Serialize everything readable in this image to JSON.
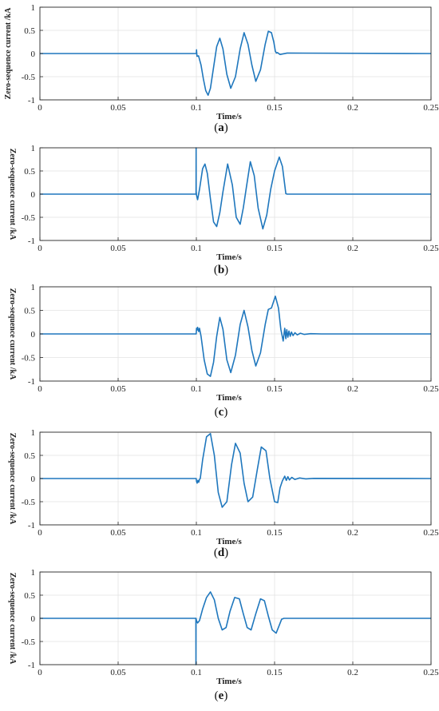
{
  "chart_data": [
    {
      "type": "line",
      "caption_letter": "a",
      "xlabel": "Time/s",
      "ylabel": "Zero-sequence current /kA",
      "xlim": [
        0,
        0.25
      ],
      "ylim": [
        -1,
        1
      ],
      "xticks": [
        0,
        0.05,
        0.1,
        0.15,
        0.2,
        0.25
      ],
      "xtick_labels": [
        "0",
        "0.05",
        "0.1",
        "0.15",
        "0.2",
        "0.25"
      ],
      "yticks": [
        -1,
        -0.5,
        0,
        0.5,
        1
      ],
      "ytick_labels": [
        "-1",
        "-0.5",
        "0",
        "0.5",
        "1"
      ],
      "grid": true,
      "series_color": "#1f77bd",
      "x": [
        0,
        0.1,
        0.1001,
        0.1004,
        0.1014,
        0.103,
        0.1045,
        0.106,
        0.1075,
        0.109,
        0.111,
        0.113,
        0.115,
        0.117,
        0.1195,
        0.122,
        0.125,
        0.128,
        0.1305,
        0.133,
        0.1355,
        0.138,
        0.141,
        0.144,
        0.146,
        0.148,
        0.1495,
        0.1505,
        0.1512,
        0.1518,
        0.1535,
        0.158,
        0.25
      ],
      "y": [
        0,
        0,
        0.08,
        -0.06,
        -0.05,
        -0.25,
        -0.55,
        -0.8,
        -0.9,
        -0.75,
        -0.3,
        0.15,
        0.33,
        0.1,
        -0.45,
        -0.75,
        -0.5,
        0.1,
        0.45,
        0.2,
        -0.25,
        -0.6,
        -0.35,
        0.2,
        0.48,
        0.45,
        0.25,
        0.05,
        0.01,
        0.02,
        -0.02,
        0.01,
        0
      ]
    },
    {
      "type": "line",
      "caption_letter": "b",
      "xlabel": "Time/s",
      "ylabel": "Zero-sequence current /kA",
      "xlim": [
        0,
        0.25
      ],
      "ylim": [
        -1,
        1
      ],
      "xticks": [
        0,
        0.05,
        0.1,
        0.15,
        0.2,
        0.25
      ],
      "xtick_labels": [
        "0",
        "0.05",
        "0.1",
        "0.15",
        "0.2",
        "0.25"
      ],
      "yticks": [
        -1,
        -0.5,
        0,
        0.5,
        1
      ],
      "ytick_labels": [
        "-1",
        "-0.5",
        "0",
        "0.5",
        "1"
      ],
      "grid": true,
      "series_color": "#1f77bd",
      "x": [
        0,
        0.0998,
        0.09985,
        0.0999,
        0.1001,
        0.1008,
        0.102,
        0.104,
        0.1055,
        0.107,
        0.109,
        0.111,
        0.113,
        0.115,
        0.117,
        0.12,
        0.123,
        0.1255,
        0.128,
        0.13,
        0.132,
        0.1345,
        0.137,
        0.1395,
        0.1425,
        0.145,
        0.1475,
        0.15,
        0.153,
        0.155,
        0.1565,
        0.1572,
        0.158,
        0.25
      ],
      "y": [
        0,
        0,
        1,
        0.05,
        -0.02,
        -0.12,
        0.1,
        0.55,
        0.65,
        0.45,
        -0.1,
        -0.6,
        -0.7,
        -0.4,
        0.05,
        0.65,
        0.2,
        -0.5,
        -0.65,
        -0.3,
        0.15,
        0.7,
        0.4,
        -0.3,
        -0.75,
        -0.45,
        0.1,
        0.5,
        0.8,
        0.6,
        0.2,
        0.01,
        0,
        0
      ]
    },
    {
      "type": "line",
      "caption_letter": "c",
      "xlabel": "Time/s",
      "ylabel": "Zero-sequence current /kA",
      "xlim": [
        0,
        0.25
      ],
      "ylim": [
        -1,
        1
      ],
      "xticks": [
        0,
        0.05,
        0.1,
        0.15,
        0.2,
        0.25
      ],
      "xtick_labels": [
        "0",
        "0.05",
        "0.1",
        "0.15",
        "0.2",
        "0.25"
      ],
      "yticks": [
        -1,
        -0.5,
        0,
        0.5,
        1
      ],
      "ytick_labels": [
        "-1",
        "-0.5",
        "0",
        "0.5",
        "1"
      ],
      "grid": true,
      "series_color": "#1f77bd",
      "x": [
        0,
        0.0999,
        0.1001,
        0.1004,
        0.1008,
        0.1015,
        0.102,
        0.103,
        0.105,
        0.107,
        0.109,
        0.111,
        0.113,
        0.115,
        0.117,
        0.1195,
        0.122,
        0.125,
        0.128,
        0.1305,
        0.133,
        0.1355,
        0.138,
        0.141,
        0.144,
        0.146,
        0.148,
        0.1505,
        0.1525,
        0.154,
        0.1555,
        0.1565,
        0.1572,
        0.1578,
        0.1585,
        0.1592,
        0.16,
        0.1608,
        0.1618,
        0.163,
        0.1645,
        0.1665,
        0.169,
        0.173,
        0.18,
        0.25
      ],
      "y": [
        0,
        0,
        0.12,
        0.08,
        0.14,
        0.05,
        0.12,
        -0.05,
        -0.55,
        -0.85,
        -0.9,
        -0.6,
        -0.05,
        0.35,
        0.1,
        -0.55,
        -0.82,
        -0.45,
        0.2,
        0.5,
        0.15,
        -0.35,
        -0.68,
        -0.4,
        0.2,
        0.52,
        0.55,
        0.8,
        0.55,
        0.1,
        -0.15,
        0.12,
        -0.1,
        0.09,
        -0.07,
        0.06,
        -0.05,
        0.04,
        -0.035,
        0.025,
        -0.02,
        0.015,
        -0.01,
        0.006,
        0,
        0
      ]
    },
    {
      "type": "line",
      "caption_letter": "d",
      "xlabel": "Time/s",
      "ylabel": "Zero-sequence current /kA",
      "xlim": [
        0,
        0.25
      ],
      "ylim": [
        -1,
        1
      ],
      "xticks": [
        0,
        0.05,
        0.1,
        0.15,
        0.2,
        0.25
      ],
      "xtick_labels": [
        "0",
        "0.05",
        "0.1",
        "0.15",
        "0.2",
        "0.25"
      ],
      "yticks": [
        -1,
        -0.5,
        0,
        0.5,
        1
      ],
      "ytick_labels": [
        "-1",
        "-0.5",
        "0",
        "0.5",
        "1"
      ],
      "grid": true,
      "series_color": "#1f77bd",
      "x": [
        0,
        0.0999,
        0.1001,
        0.1005,
        0.101,
        0.1015,
        0.102,
        0.1025,
        0.104,
        0.1065,
        0.109,
        0.1115,
        0.114,
        0.1165,
        0.1195,
        0.1225,
        0.125,
        0.128,
        0.1305,
        0.133,
        0.136,
        0.139,
        0.1415,
        0.1445,
        0.147,
        0.15,
        0.152,
        0.1535,
        0.155,
        0.1565,
        0.1575,
        0.1585,
        0.1595,
        0.161,
        0.163,
        0.166,
        0.17,
        0.175,
        0.25
      ],
      "y": [
        0,
        0,
        -0.06,
        -0.1,
        -0.04,
        -0.08,
        -0.02,
        0,
        0.4,
        0.9,
        0.97,
        0.5,
        -0.3,
        -0.62,
        -0.5,
        0.3,
        0.76,
        0.55,
        -0.1,
        -0.5,
        -0.4,
        0.2,
        0.68,
        0.6,
        0,
        -0.5,
        -0.52,
        -0.2,
        -0.05,
        0.05,
        -0.04,
        0.04,
        -0.03,
        0.025,
        -0.02,
        0.012,
        -0.008,
        0.004,
        0
      ]
    },
    {
      "type": "line",
      "caption_letter": "e",
      "xlabel": "Time/s",
      "ylabel": "Zero-sequence current /kA",
      "xlim": [
        0,
        0.25
      ],
      "ylim": [
        -1,
        1
      ],
      "xticks": [
        0,
        0.05,
        0.1,
        0.15,
        0.2,
        0.25
      ],
      "xtick_labels": [
        "0",
        "0.05",
        "0.1",
        "0.15",
        "0.2",
        "0.25"
      ],
      "yticks": [
        -1,
        -0.5,
        0,
        0.5,
        1
      ],
      "ytick_labels": [
        "-1",
        "-0.5",
        "0",
        "0.5",
        "1"
      ],
      "grid": true,
      "series_color": "#1f77bd",
      "x": [
        0,
        0.0997,
        0.09975,
        0.0998,
        0.1001,
        0.1008,
        0.102,
        0.104,
        0.1065,
        0.109,
        0.1115,
        0.114,
        0.1165,
        0.119,
        0.1215,
        0.1245,
        0.1275,
        0.13,
        0.1325,
        0.135,
        0.138,
        0.141,
        0.1435,
        0.146,
        0.1485,
        0.151,
        0.153,
        0.1545,
        0.156,
        0.157,
        0.25
      ],
      "y": [
        0,
        0,
        -1,
        0,
        -0.05,
        -0.1,
        -0.05,
        0.2,
        0.45,
        0.57,
        0.4,
        0,
        -0.25,
        -0.2,
        0.15,
        0.45,
        0.42,
        0.1,
        -0.2,
        -0.25,
        0.1,
        0.42,
        0.38,
        0.05,
        -0.25,
        -0.32,
        -0.15,
        -0.02,
        0,
        0,
        0
      ]
    }
  ]
}
